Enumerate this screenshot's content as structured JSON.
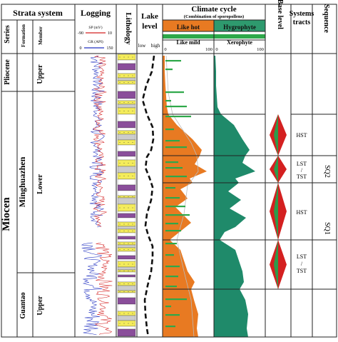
{
  "headers": {
    "strata_system": "Strata system",
    "logging": "Logging",
    "lithology": "Lithology",
    "lake_level_1": "Lake",
    "lake_level_2": "level",
    "climate_cycle": "Climate cycle",
    "climate_sub": "(Combination of sporopollens)",
    "base_level": "Base level",
    "systems_tracts_1": "Systems",
    "systems_tracts_2": "tracts",
    "sequence": "Sequence",
    "series": "Series",
    "formation": "Formation",
    "member": "Member",
    "sp_label": "SP (mV)",
    "sp_min": "-90",
    "sp_max": "10",
    "gr_label": "GR (API)",
    "gr_min": "0",
    "gr_max": "150",
    "lake_low": "low",
    "lake_high": "high",
    "like_hot": "Like hot",
    "like_mild": "Like mild",
    "hygrophyte": "Hygrophyte",
    "xerophyte": "Xerophyte",
    "pct_0a": "0",
    "pct_100a": "100",
    "pct_0b": "0",
    "pct_100b": "100"
  },
  "strata": {
    "series": [
      {
        "label": "Pliocene"
      },
      {
        "label": "Miocen"
      }
    ],
    "formations": [
      {
        "label": "Minghuazhen"
      },
      {
        "label": "Guantao"
      }
    ],
    "members": [
      {
        "label": "Upper"
      },
      {
        "label": "Lower"
      },
      {
        "label": "Upper"
      }
    ]
  },
  "systems_tracts": [
    {
      "label": "HST"
    },
    {
      "label_lines": [
        "LST",
        "/",
        "TST"
      ]
    },
    {
      "label": "HST"
    },
    {
      "label_lines": [
        "LST",
        "/",
        "TST"
      ]
    }
  ],
  "sequences": [
    {
      "label": "SQ2"
    },
    {
      "label": "SQ1"
    }
  ],
  "colors": {
    "orange": "#e87a22",
    "teal": "#1f8a6a",
    "green_bar": "#2ea84a",
    "green_header": "#2e9a6e",
    "lith_yellow": "#f4ec5a",
    "lith_purple": "#8a4e9a",
    "sp_red": "#d42020",
    "gr_blue": "#2030c0",
    "base_red": "#d42020",
    "base_green": "#2e9a4a"
  }
}
